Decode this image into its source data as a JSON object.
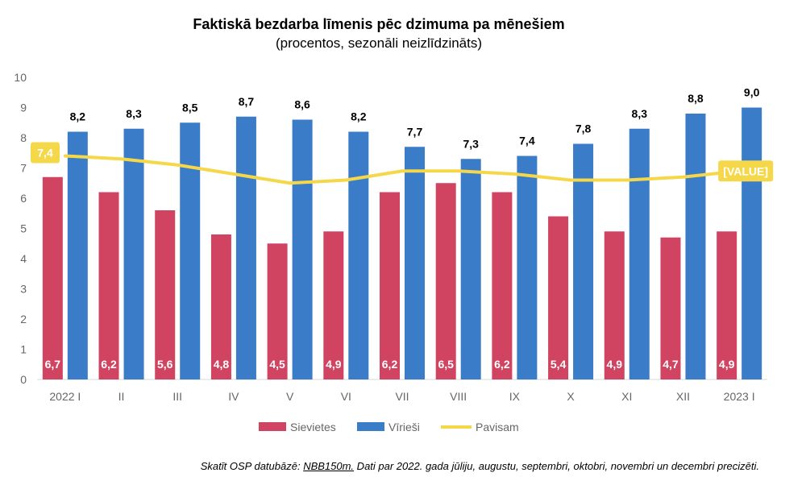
{
  "chart_data": {
    "type": "bar",
    "title": "Faktiskā bezdarba līmenis pēc dzimuma pa mēnešiem",
    "subtitle": "(procentos, sezonāli neizlīdzināts)",
    "categories": [
      "2022 I",
      "II",
      "III",
      "IV",
      "V",
      "VI",
      "VII",
      "VIII",
      "IX",
      "X",
      "XI",
      "XII",
      "2023 I"
    ],
    "ylim": [
      0,
      10
    ],
    "yticks": [
      "0",
      "1",
      "2",
      "3",
      "4",
      "5",
      "6",
      "7",
      "8",
      "9",
      "10"
    ],
    "grid": false,
    "legend_position": "bottom",
    "series": [
      {
        "name": "Sievietes",
        "type": "bar",
        "color": "#d04462",
        "values": [
          6.7,
          6.2,
          5.6,
          4.8,
          4.5,
          4.9,
          6.2,
          6.5,
          6.2,
          5.4,
          4.9,
          4.7,
          4.9
        ],
        "labels": [
          "6,7",
          "6,2",
          "5,6",
          "4,8",
          "4,5",
          "4,9",
          "6,2",
          "6,5",
          "6,2",
          "5,4",
          "4,9",
          "4,7",
          "4,9"
        ]
      },
      {
        "name": "Vīrieši",
        "type": "bar",
        "color": "#3a7cc8",
        "values": [
          8.2,
          8.3,
          8.5,
          8.7,
          8.6,
          8.2,
          7.7,
          7.3,
          7.4,
          7.8,
          8.3,
          8.8,
          9.0
        ],
        "labels": [
          "8,2",
          "8,3",
          "8,5",
          "8,7",
          "8,6",
          "8,2",
          "7,7",
          "7,3",
          "7,4",
          "7,8",
          "8,3",
          "8,8",
          "9,0"
        ]
      },
      {
        "name": "Pavisam",
        "type": "line",
        "color": "#f5d84a",
        "values": [
          7.4,
          7.3,
          7.1,
          6.8,
          6.5,
          6.6,
          6.9,
          6.9,
          6.8,
          6.6,
          6.6,
          6.7,
          6.9
        ],
        "point_labels": [
          {
            "index": 0,
            "text": "7,4"
          },
          {
            "index": 12,
            "text": "[VALUE]"
          }
        ]
      }
    ]
  },
  "footnote": {
    "prefix": "Skatīt OSP datubāzē: ",
    "link": "NBB150m.",
    "suffix": " Dati par 2022. gada jūliju, augustu, septembri, oktobri, novembri un decembri precizēti."
  }
}
